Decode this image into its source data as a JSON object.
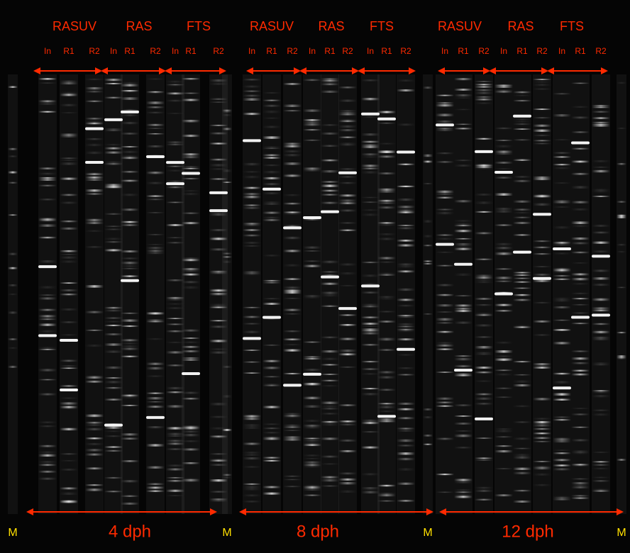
{
  "panels": [
    {
      "groups": [
        {
          "label": "RASUV",
          "lanes": [
            "In",
            "R1",
            "R2"
          ]
        },
        {
          "label": "RAS",
          "lanes": [
            "In",
            "R1",
            "R2"
          ]
        },
        {
          "label": "FTS",
          "lanes": [
            "In",
            "R1",
            "R2"
          ]
        }
      ],
      "time": "4 dph"
    },
    {
      "groups": [
        {
          "label": "RASUV",
          "lanes": [
            "In",
            "R1",
            "R2"
          ]
        },
        {
          "label": "RAS",
          "lanes": [
            "In",
            "R1",
            "R2"
          ]
        },
        {
          "label": "FTS",
          "lanes": [
            "In",
            "R1",
            "R2"
          ]
        }
      ],
      "time": "8 dph"
    },
    {
      "groups": [
        {
          "label": "RASUV",
          "lanes": [
            "In",
            "R1",
            "R2"
          ]
        },
        {
          "label": "RAS",
          "lanes": [
            "In",
            "R1",
            "R2"
          ]
        },
        {
          "label": "FTS",
          "lanes": [
            "In",
            "R1",
            "R2"
          ]
        }
      ],
      "time": "12 dph"
    }
  ],
  "markers": [
    "M",
    "M",
    "M",
    "M"
  ]
}
